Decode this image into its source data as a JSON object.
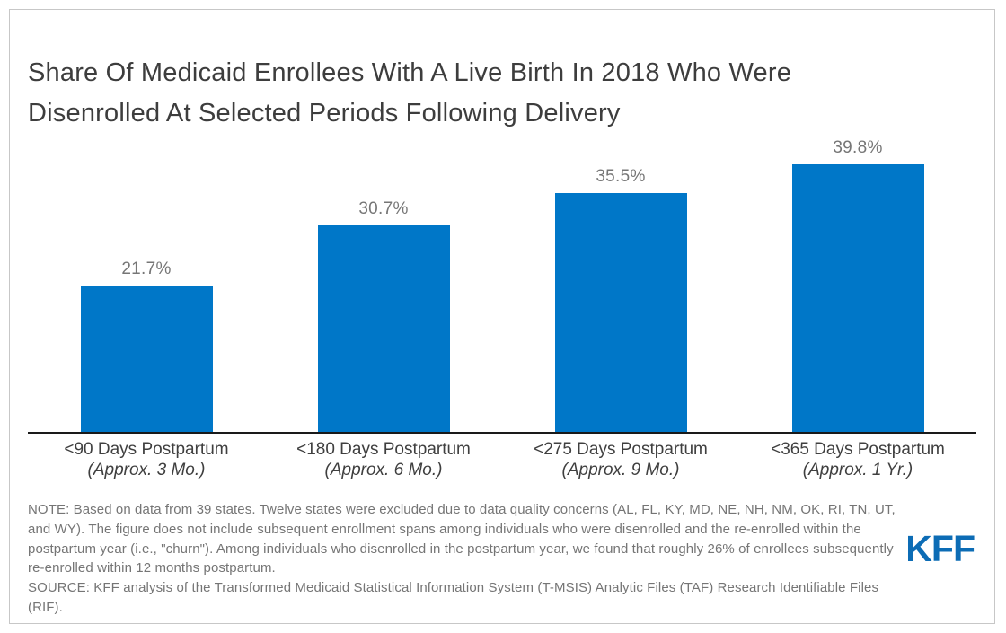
{
  "title": "Share Of Medicaid Enrollees With A Live Birth In 2018 Who Were Disenrolled At Selected Periods Following Delivery",
  "note": "NOTE: Based on data from 39 states. Twelve states were excluded due to data quality concerns (AL, FL, KY, MD, NE, NH, NM, OK, RI, TN, UT, and WY). The figure does not include subsequent enrollment spans among individuals who were disenrolled and the re-enrolled within the postpartum year (i.e., \"churn\"). Among individuals who disenrolled in the postpartum year, we found that roughly 26% of enrollees subsequently re-enrolled within 12 months postpartum.",
  "source": "SOURCE: KFF analysis of the Transformed Medicaid Statistical Information System (T-MSIS) Analytic Files (TAF) Research Identifiable Files (RIF).",
  "logo_text": "KFF",
  "colors": {
    "bar_blue": "#0077C8",
    "logo_blue": "#0C6CB5",
    "value_label_gray": "#767676",
    "text_gray": "#757575",
    "axis_black": "#1a1a1a"
  },
  "chart_data": {
    "type": "bar",
    "title": "Share Of Medicaid Enrollees With A Live Birth In 2018 Who Were Disenrolled At Selected Periods Following Delivery",
    "categories": [
      "<90 Days Postpartum",
      "<180 Days Postpartum",
      "<275 Days Postpartum",
      "<365 Days Postpartum"
    ],
    "sublabels": [
      "(Approx. 3 Mo.)",
      "(Approx. 6 Mo.)",
      "(Approx. 9 Mo.)",
      "(Approx. 1 Yr.)"
    ],
    "values": [
      21.7,
      30.7,
      35.5,
      39.8
    ],
    "value_labels": [
      "21.7%",
      "30.7%",
      "35.5%",
      "39.8%"
    ],
    "xlabel": "",
    "ylabel": "",
    "ylim": [
      0,
      44
    ],
    "grid": false,
    "legend": false,
    "data_labels_position": "above-bars",
    "bar_color": "#0077C8"
  }
}
